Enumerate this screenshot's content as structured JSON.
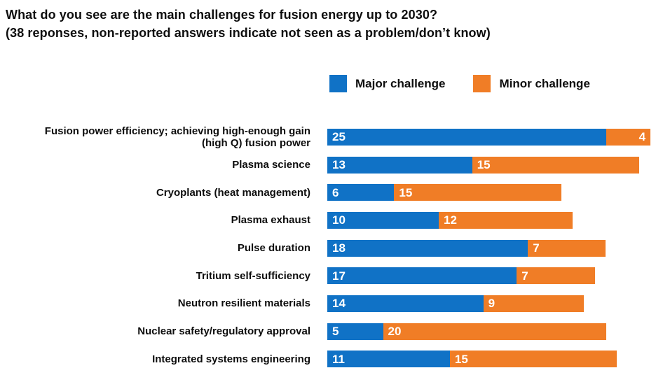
{
  "chart_data": {
    "type": "bar",
    "orientation": "horizontal",
    "stacked": true,
    "title": "What do you see are the main challenges for fusion energy up to 2030?",
    "subtitle": "(38 reponses, non-reported answers indicate not seen as a problem/don’t know)",
    "legend_position": "top",
    "grid": false,
    "xlim": [
      0,
      29.5
    ],
    "categories": [
      "Fusion power efficiency; achieving high-enough gain\n(high Q) fusion power",
      "Plasma science",
      "Cryoplants (heat management)",
      "Plasma exhaust",
      "Pulse duration",
      "Tritium self-sufficiency",
      "Neutron resilient materials",
      "Nuclear safety/regulatory approval",
      "Integrated systems engineering"
    ],
    "series": [
      {
        "name": "Major challenge",
        "color": "#1072c6",
        "values": [
          25,
          13,
          6,
          10,
          18,
          17,
          14,
          5,
          11
        ]
      },
      {
        "name": "Minor challenge",
        "color": "#f07d26",
        "values": [
          4,
          15,
          15,
          12,
          7,
          7,
          9,
          20,
          15
        ]
      }
    ],
    "value_label_color": "#ffffff"
  }
}
